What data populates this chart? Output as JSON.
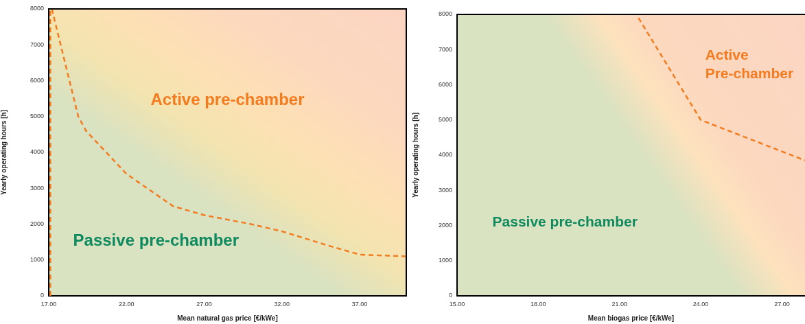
{
  "chart_data": [
    {
      "type": "line",
      "xlabel": "Mean natural gas price [€/kWe]",
      "ylabel": "Yearly operating hours [h]",
      "xlim": [
        17,
        40
      ],
      "xticks": [
        {
          "value": 17,
          "label": "17.00"
        },
        {
          "value": 22,
          "label": "22.00"
        },
        {
          "value": 27,
          "label": "27.00"
        },
        {
          "value": 32,
          "label": "32.00"
        },
        {
          "value": 37,
          "label": "37.00"
        }
      ],
      "ylim": [
        0,
        8000
      ],
      "yticks": [
        0,
        1000,
        2000,
        3000,
        4000,
        5000,
        6000,
        7000,
        8000
      ],
      "series": [
        {
          "color": "#f47c20",
          "x": [
            17.2,
            18.9,
            19.4,
            22,
            25,
            27,
            30,
            32,
            35,
            37,
            40
          ],
          "values": [
            8000,
            5000,
            4600,
            3400,
            2500,
            2250,
            2000,
            1800,
            1400,
            1150,
            1100
          ]
        }
      ],
      "ref_lines": [
        {
          "axis": "x",
          "value": 17.1,
          "color": "#f47c20",
          "line_style": "dashed"
        }
      ],
      "line_style": "dashed",
      "marker": "none",
      "annotations": [
        "Active pre-chamber",
        "Passive pre-chamber"
      ]
    },
    {
      "type": "line",
      "xlabel": "Mean biogas price [€/kWe]",
      "ylabel": "Yearly operating hours [h]",
      "xlim": [
        15,
        27.85
      ],
      "xticks": [
        {
          "value": 15,
          "label": "15.00"
        },
        {
          "value": 18,
          "label": "18.00"
        },
        {
          "value": 21,
          "label": "21.00"
        },
        {
          "value": 24,
          "label": "24.00"
        },
        {
          "value": 27,
          "label": "27.00"
        }
      ],
      "ylim": [
        0,
        8000
      ],
      "yticks": [
        0,
        1000,
        2000,
        3000,
        4000,
        5000,
        6000,
        7000,
        8000
      ],
      "series": [
        {
          "color": "#f47c20",
          "x": [
            21.7,
            24,
            27.85
          ],
          "values": [
            7900,
            5000,
            3850
          ]
        }
      ],
      "line_style": "dashed",
      "marker": "none",
      "annotations": [
        "Active Pre-chamber",
        "Passive pre-chamber"
      ]
    }
  ]
}
